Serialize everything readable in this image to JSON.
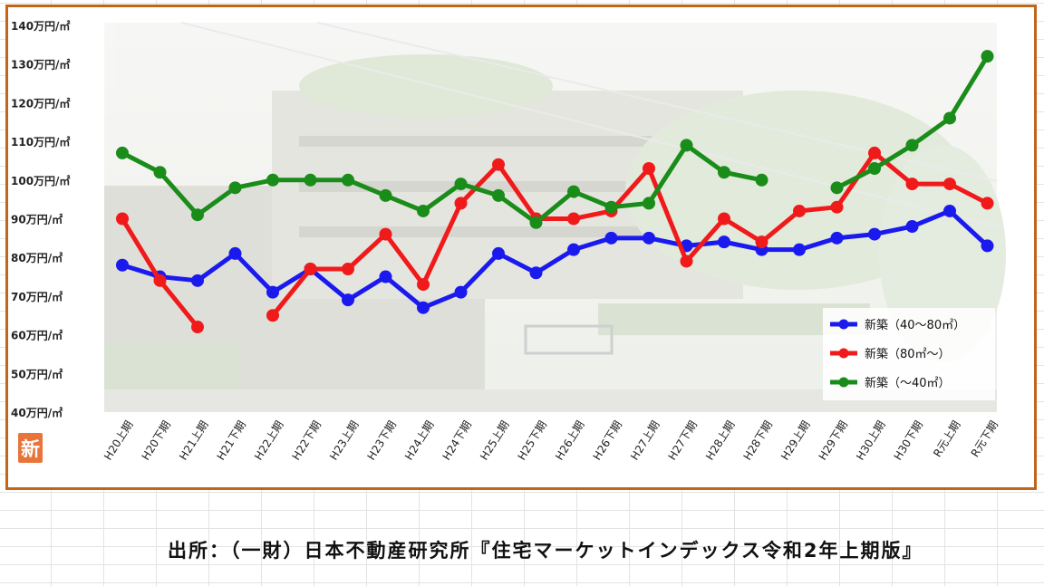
{
  "chart_data": {
    "type": "line",
    "categories": [
      "H20上期",
      "H20下期",
      "H21上期",
      "H21下期",
      "H22上期",
      "H22下期",
      "H23上期",
      "H23下期",
      "H24上期",
      "H24下期",
      "H25上期",
      "H25下期",
      "H26上期",
      "H26下期",
      "H27上期",
      "H27下期",
      "H28上期",
      "H28下期",
      "H29上期",
      "H29下期",
      "H30上期",
      "H30下期",
      "R元上期",
      "R元下期"
    ],
    "y_ticks": [
      "40万円/㎡",
      "50万円/㎡",
      "60万円/㎡",
      "70万円/㎡",
      "80万円/㎡",
      "90万円/㎡",
      "100万円/㎡",
      "110万円/㎡",
      "120万円/㎡",
      "130万円/㎡",
      "140万円/㎡"
    ],
    "ylim": [
      40,
      140
    ],
    "grid": false,
    "legend_position": "bottom-right",
    "series": [
      {
        "name": "新築（40～80㎡）",
        "color": "#1a1aee",
        "values": [
          78,
          75,
          74,
          81,
          71,
          77,
          69,
          75,
          67,
          71,
          81,
          76,
          82,
          85,
          85,
          83,
          84,
          82,
          82,
          85,
          86,
          88,
          92,
          83
        ]
      },
      {
        "name": "新築（80㎡～）",
        "color": "#f01a1a",
        "values": [
          90,
          74,
          62,
          null,
          65,
          77,
          77,
          86,
          73,
          94,
          104,
          90,
          90,
          92,
          103,
          79,
          90,
          84,
          92,
          93,
          107,
          99,
          99,
          94
        ]
      },
      {
        "name": "新築（～40㎡）",
        "color": "#1a8c1a",
        "values": [
          107,
          102,
          91,
          98,
          100,
          100,
          100,
          96,
          92,
          99,
          96,
          89,
          97,
          93,
          94,
          109,
          102,
          100,
          null,
          98,
          103,
          109,
          116,
          132
        ]
      }
    ]
  },
  "badge": {
    "label": "新"
  },
  "source": "出所：（一財）日本不動産研究所『住宅マーケットインデックス令和2年上期版』",
  "colors": {
    "frame": "#c0661a",
    "badge": "#e8743a"
  }
}
